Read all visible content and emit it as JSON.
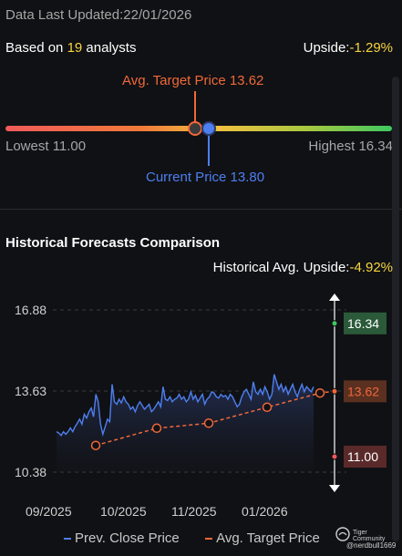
{
  "header": {
    "last_updated_label": "Data Last Updated:",
    "last_updated_value": "22/01/2026",
    "based_on_prefix": "Based on ",
    "analyst_count": "19",
    "analysts_suffix": " analysts",
    "upside_label": "Upside:",
    "upside_value": "-1.29%"
  },
  "price_range": {
    "avg_target_label": "Avg. Target Price 13.62",
    "current_price_label": "Current Price 13.80",
    "lowest_label": "Lowest 11.00",
    "highest_label": "Highest 16.34",
    "lowest": 11.0,
    "highest": 16.34,
    "avg_target": 13.62,
    "current": 13.8
  },
  "historical": {
    "section_title": "Historical Forecasts Comparison",
    "avg_upside_label": "Historical Avg. Upside:",
    "avg_upside_value": "-4.92%"
  },
  "chart_data": {
    "type": "line",
    "y_ticks": [
      "16.88",
      "13.63",
      "10.38"
    ],
    "ylim": [
      10.38,
      16.88
    ],
    "x_ticks": [
      "09/2025",
      "10/2025",
      "11/2025",
      "01/2026"
    ],
    "right_labels": {
      "high": "16.34",
      "avg": "13.62",
      "low": "11.00"
    },
    "series": [
      {
        "name": "Prev. Close Price",
        "color": "#4d7ff0",
        "values": [
          12.0,
          11.95,
          11.85,
          12.0,
          11.9,
          12.0,
          12.15,
          12.0,
          12.2,
          12.35,
          12.5,
          12.3,
          12.7,
          12.55,
          12.8,
          12.95,
          12.6,
          13.5,
          13.2,
          12.3,
          11.9,
          12.2,
          12.5,
          12.4,
          13.9,
          13.2,
          13.1,
          13.3,
          13.15,
          13.4,
          13.2,
          13.1,
          12.9,
          13.0,
          12.8,
          13.05,
          13.2,
          13.05,
          12.9,
          13.0,
          13.1,
          12.8,
          12.9,
          13.05,
          13.2,
          13.0,
          13.8,
          13.3,
          13.25,
          13.4,
          13.2,
          13.3,
          13.35,
          13.5,
          13.3,
          13.4,
          13.2,
          13.3,
          13.6,
          13.3,
          13.45,
          13.2,
          13.35,
          13.5,
          13.1,
          13.3,
          13.4,
          13.6,
          13.55,
          13.4,
          13.35,
          13.5,
          13.4,
          13.45,
          13.3,
          13.5,
          13.4,
          13.2,
          13.0,
          13.1,
          13.4,
          13.6,
          13.7,
          13.5,
          13.3,
          14.0,
          13.6,
          13.5,
          13.7,
          13.5,
          13.8,
          13.6,
          13.3,
          13.5,
          14.3,
          14.0,
          13.7,
          13.9,
          13.6,
          13.8,
          13.5,
          13.7,
          13.9,
          13.6,
          13.4,
          13.7,
          13.9,
          13.6,
          13.8,
          13.7,
          13.6,
          13.8
        ]
      },
      {
        "name": "Avg. Target Price",
        "color": "#f0683a",
        "values": [
          11.45,
          12.14,
          12.34,
          12.98,
          13.55,
          13.62
        ]
      }
    ]
  },
  "legend": {
    "close_label": "Prev. Close Price",
    "target_label": "Avg. Target Price"
  },
  "watermark": {
    "brand": "Tiger Community",
    "handle": "@nerdbull1669"
  },
  "colors": {
    "background": "#101114",
    "accent_yellow": "#f5d442",
    "accent_orange": "#f0683a",
    "accent_blue": "#4d7ff0",
    "green_badge": "#2a5a3a",
    "red_badge": "#5a2a2a"
  }
}
